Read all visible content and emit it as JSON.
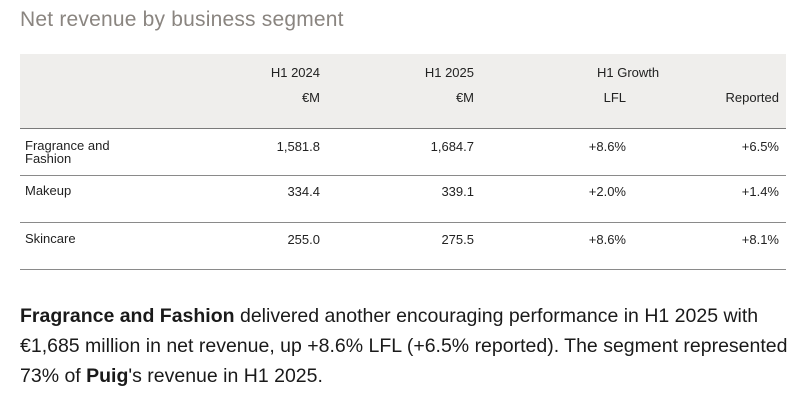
{
  "title": "Net revenue by business segment",
  "table": {
    "headers": {
      "h1_2024": "H1 2024",
      "h1_2025": "H1 2025",
      "growth": "H1 Growth",
      "unit_2024": "€M",
      "unit_2025": "€M",
      "lfl": "LFL",
      "reported": "Reported"
    },
    "rows": [
      {
        "segment": "Fragrance and Fashion",
        "h1_2024": "1,581.8",
        "h1_2025": "1,684.7",
        "lfl": "+8.6%",
        "reported": "+6.5%"
      },
      {
        "segment": "Makeup",
        "h1_2024": "334.4",
        "h1_2025": "339.1",
        "lfl": "+2.0%",
        "reported": "+1.4%"
      },
      {
        "segment": "Skincare",
        "h1_2024": "255.0",
        "h1_2025": "275.5",
        "lfl": "+8.6%",
        "reported": "+8.1%"
      }
    ]
  },
  "paragraph": {
    "bold_1": "Fragrance and Fashion",
    "text_1": " delivered another encouraging performance in H1 2025 with €1,685 million in net revenue, up +8.6% LFL (+6.5% reported). The segment represented 73% of ",
    "bold_2": "Puig",
    "text_2": "'s revenue in H1 2025."
  }
}
